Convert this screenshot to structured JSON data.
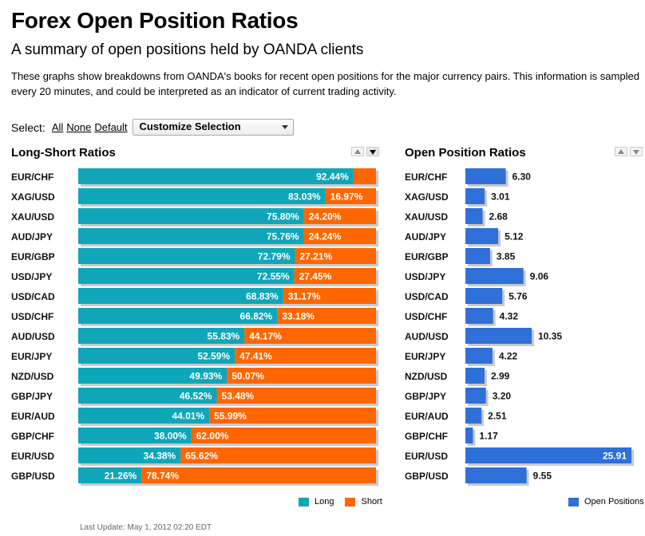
{
  "page": {
    "title": "Forex Open Position Ratios",
    "subtitle": "A summary of open positions held by OANDA clients",
    "description": "These graphs show breakdowns from OANDA's books for recent open positions for the major currency pairs. This information is sampled every 20 minutes, and could be interpreted as an indicator of current trading activity.",
    "last_update": "Last Update: May 1, 2012 02:20 EDT"
  },
  "select": {
    "label": "Select:",
    "all": "All",
    "none": "None",
    "default": "Default",
    "dropdown_value": "Customize Selection"
  },
  "colors": {
    "long": "#10a6b9",
    "short": "#ff6600",
    "open": "#2f6fd8",
    "shadow": "#c9c9c9"
  },
  "chart_data": [
    {
      "type": "bar",
      "stacked": true,
      "orientation": "horizontal",
      "title": "Long-Short Ratios",
      "categories": [
        "EUR/CHF",
        "XAG/USD",
        "XAU/USD",
        "AUD/JPY",
        "EUR/GBP",
        "USD/JPY",
        "USD/CAD",
        "USD/CHF",
        "AUD/USD",
        "EUR/JPY",
        "NZD/USD",
        "GBP/JPY",
        "EUR/AUD",
        "GBP/CHF",
        "EUR/USD",
        "GBP/USD"
      ],
      "series": [
        {
          "name": "Long",
          "values": [
            92.44,
            83.03,
            75.8,
            75.76,
            72.79,
            72.55,
            68.83,
            66.82,
            55.83,
            52.59,
            49.93,
            46.52,
            44.01,
            38.0,
            34.38,
            21.26
          ]
        },
        {
          "name": "Short",
          "values": [
            7.56,
            16.97,
            24.2,
            24.24,
            27.21,
            27.45,
            31.17,
            33.18,
            44.17,
            47.41,
            50.07,
            53.48,
            55.99,
            62.0,
            65.62,
            78.74
          ]
        }
      ],
      "labels": {
        "long": [
          "92.44%",
          "83.03%",
          "75.80%",
          "75.76%",
          "72.79%",
          "72.55%",
          "68.83%",
          "66.82%",
          "55.83%",
          "52.59%",
          "49.93%",
          "46.52%",
          "44.01%",
          "38.00%",
          "34.38%",
          "21.26%"
        ],
        "short": [
          "",
          "16.97%",
          "24.20%",
          "24.24%",
          "27.21%",
          "27.45%",
          "31.17%",
          "33.18%",
          "44.17%",
          "47.41%",
          "50.07%",
          "53.48%",
          "55.99%",
          "62.00%",
          "65.62%",
          "78.74%"
        ]
      },
      "xlim": [
        0,
        100
      ],
      "legend_position": "bottom-right"
    },
    {
      "type": "bar",
      "orientation": "horizontal",
      "title": "Open Position Ratios",
      "categories": [
        "EUR/CHF",
        "XAG/USD",
        "XAU/USD",
        "AUD/JPY",
        "EUR/GBP",
        "USD/JPY",
        "USD/CAD",
        "USD/CHF",
        "AUD/USD",
        "EUR/JPY",
        "NZD/USD",
        "GBP/JPY",
        "EUR/AUD",
        "GBP/CHF",
        "EUR/USD",
        "GBP/USD"
      ],
      "series": [
        {
          "name": "Open Positions",
          "values": [
            6.3,
            3.01,
            2.68,
            5.12,
            3.85,
            9.06,
            5.76,
            4.32,
            10.35,
            4.22,
            2.99,
            3.2,
            2.51,
            1.17,
            25.91,
            9.55
          ]
        }
      ],
      "labels": [
        "6.30",
        "3.01",
        "2.68",
        "5.12",
        "3.85",
        "9.06",
        "5.76",
        "4.32",
        "10.35",
        "4.22",
        "2.99",
        "3.20",
        "2.51",
        "1.17",
        "25.91",
        "9.55"
      ],
      "xlim": [
        0,
        25.91
      ],
      "legend_position": "bottom-right"
    }
  ]
}
